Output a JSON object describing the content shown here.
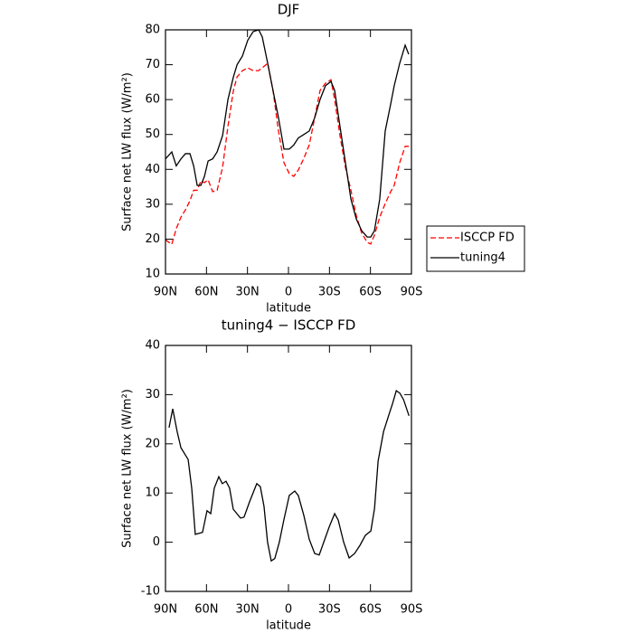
{
  "chart_data": [
    {
      "type": "line",
      "title": "DJF",
      "xlabel": "latitude",
      "ylabel": "Surface net LW flux (W/m²)",
      "x": [
        90,
        85.4,
        82.1,
        78.7,
        75.4,
        72.1,
        69.4,
        66.8,
        64.1,
        61.5,
        58.8,
        55.5,
        52.2,
        48.2,
        44.3,
        40.3,
        37.6,
        33.7,
        29.8,
        25.8,
        21.8,
        19.2,
        15.2,
        11.3,
        7.3,
        3.3,
        -0.6,
        -3.9,
        -7.2,
        -11.3,
        -15.2,
        -19.2,
        -23.1,
        -27.1,
        -31.1,
        -33.8,
        -37.7,
        -41.7,
        -45.7,
        -49.6,
        -53.6,
        -57.6,
        -60.2,
        -62.9,
        -66.8,
        -70.8,
        -74.8,
        -77.4,
        -81.4,
        -85.4,
        -88.0
      ],
      "series": [
        {
          "name": "ISCCP FD",
          "color": "#ff0000",
          "style": "dashed",
          "values": [
            19.8,
            18.5,
            23,
            26.3,
            28.4,
            31,
            34,
            34,
            36.7,
            36.2,
            37,
            33.6,
            34,
            40.6,
            52.3,
            62.6,
            66.5,
            68.3,
            69.1,
            68.3,
            68.3,
            69.1,
            70.4,
            62.6,
            51,
            41.9,
            38.8,
            38,
            39.8,
            43.2,
            47,
            54.8,
            62.6,
            64.7,
            65.7,
            60,
            49.7,
            40.6,
            34,
            26.8,
            21.7,
            19.1,
            18.6,
            21.1,
            26.3,
            30.2,
            33.6,
            35.4,
            41.9,
            46.6,
            46.6
          ]
        },
        {
          "name": "tuning4",
          "color": "#000000",
          "style": "solid",
          "values": [
            43,
            45,
            41,
            43,
            44.5,
            44.5,
            41,
            35.4,
            35.4,
            38,
            42.4,
            43,
            45,
            49.7,
            60,
            66.5,
            70,
            72.5,
            77,
            79.5,
            80,
            78,
            70.4,
            62.6,
            54.8,
            45.8,
            45.8,
            47,
            49,
            50,
            51,
            54.8,
            60,
            64,
            65.2,
            62.6,
            52.3,
            41.9,
            31.5,
            25.8,
            22.4,
            20.6,
            20.6,
            22.4,
            31.5,
            51,
            58.7,
            64,
            70.4,
            75.6,
            73
          ]
        }
      ],
      "xlim": [
        90,
        -90
      ],
      "ylim": [
        10,
        80
      ],
      "xticks": [
        {
          "value": 90,
          "label": "90N"
        },
        {
          "value": 60,
          "label": "60N"
        },
        {
          "value": 30,
          "label": "30N"
        },
        0,
        {
          "value": -30,
          "label": "30S"
        },
        {
          "value": -60,
          "label": "60S"
        },
        {
          "value": -90,
          "label": "90S"
        }
      ],
      "yticks": [
        10,
        20,
        30,
        40,
        50,
        60,
        70,
        80
      ],
      "legend": "right"
    },
    {
      "type": "line",
      "title": "tuning4 − ISCCP FD",
      "xlabel": "latitude",
      "ylabel": "Surface net LW flux (W/m²)",
      "x": [
        87.4,
        84.7,
        81.4,
        78.7,
        73.4,
        70.8,
        68.2,
        62.9,
        59.6,
        56.9,
        54.3,
        51.0,
        48.4,
        45.7,
        43.1,
        40.4,
        35.1,
        32.5,
        28.5,
        23.2,
        20.6,
        17.9,
        15.3,
        12.6,
        10.0,
        6.7,
        3.4,
        -0.6,
        -4.6,
        -7.2,
        -11.2,
        -15.2,
        -19.2,
        -22.5,
        -25.8,
        -29.8,
        -33.8,
        -36.4,
        -40.4,
        -44.4,
        -48.4,
        -52.4,
        -56.3,
        -60.3,
        -63.0,
        -65.6,
        -69.6,
        -73.6,
        -76.2,
        -78.9,
        -81.5,
        -84.2,
        -88.2
      ],
      "series": [
        {
          "color": "#000000",
          "style": "solid",
          "values": [
            23.3,
            27.1,
            22.4,
            19.2,
            16.8,
            11,
            1.6,
            2,
            6.4,
            5.8,
            11,
            13.3,
            11.9,
            12.4,
            11,
            6.7,
            4.9,
            5.1,
            8.2,
            11.9,
            11.3,
            7.3,
            0,
            -3.8,
            -3.3,
            0,
            4.5,
            9.5,
            10.4,
            9.5,
            5.5,
            0.6,
            -2.3,
            -2.6,
            0,
            3.1,
            5.8,
            4.5,
            0,
            -3.2,
            -2.3,
            -0.6,
            1.4,
            2.3,
            6.9,
            16.5,
            22.5,
            26,
            28.2,
            30.8,
            30.3,
            29,
            25.7
          ]
        }
      ],
      "xlim": [
        90,
        -90
      ],
      "ylim": [
        -10,
        40
      ],
      "xticks": [
        {
          "value": 90,
          "label": "90N"
        },
        {
          "value": 60,
          "label": "60N"
        },
        {
          "value": 30,
          "label": "30N"
        },
        0,
        {
          "value": -30,
          "label": "30S"
        },
        {
          "value": -60,
          "label": "60S"
        },
        {
          "value": -90,
          "label": "90S"
        }
      ],
      "yticks": [
        -10,
        0,
        10,
        20,
        30,
        40
      ]
    }
  ]
}
